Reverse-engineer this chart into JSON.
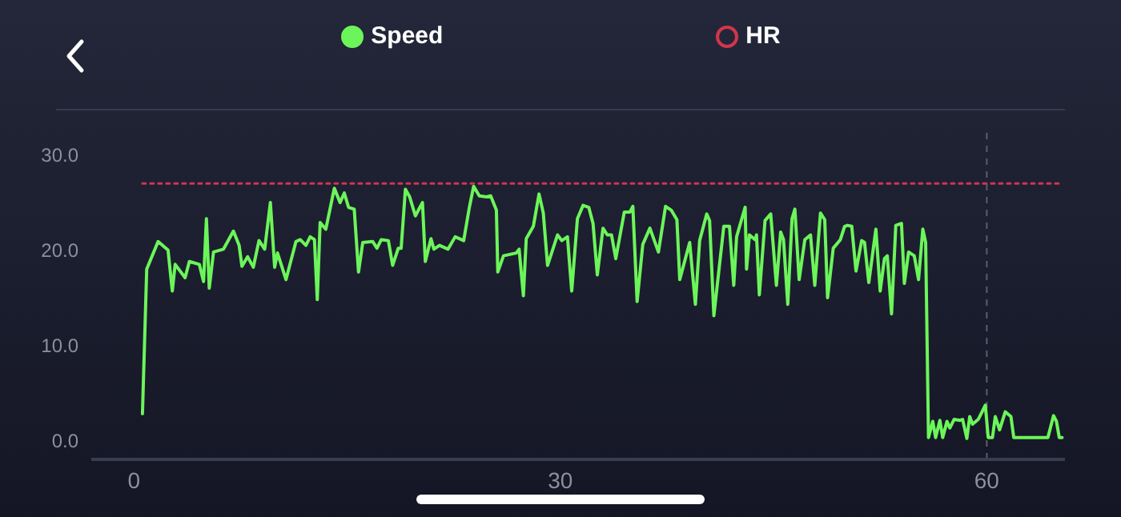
{
  "chart_data": {
    "type": "line",
    "legend": "top",
    "marker": "none",
    "xlim": [
      -3,
      65.5
    ],
    "xticks": [
      0,
      30,
      60
    ],
    "ylim": [
      -2,
      33
    ],
    "yticks": [
      {
        "value": 0,
        "label": "0.0"
      },
      {
        "value": 10,
        "label": "10.0"
      },
      {
        "value": 20,
        "label": "20.0"
      },
      {
        "value": 30,
        "label": "30.0"
      }
    ],
    "ref_lines": [
      {
        "axis": "x",
        "value": 60,
        "color": "#5a5d6e",
        "line_style": "dashed"
      }
    ],
    "series": [
      {
        "name": "Speed",
        "color": "#6cf55a",
        "line_style": "solid",
        "x": [
          0.6,
          0.9,
          1.7,
          2.4,
          2.7,
          2.9,
          3.6,
          3.9,
          4.6,
          4.9,
          5.1,
          5.3,
          5.6,
          6.3,
          7.0,
          7.4,
          7.6,
          8.0,
          8.4,
          8.8,
          9.2,
          9.6,
          9.9,
          10.1,
          10.7,
          11.4,
          11.7,
          12.1,
          12.4,
          12.7,
          12.9,
          13.1,
          13.5,
          14.1,
          14.5,
          14.8,
          15.1,
          15.5,
          15.8,
          16.1,
          16.8,
          17.1,
          17.4,
          17.9,
          18.2,
          18.6,
          18.8,
          19.1,
          19.4,
          19.8,
          20.3,
          20.5,
          20.9,
          21.1,
          21.5,
          22.1,
          22.6,
          23.2,
          23.6,
          23.9,
          24.3,
          24.8,
          25.1,
          25.5,
          25.6,
          26.0,
          26.9,
          27.1,
          27.4,
          27.6,
          28.1,
          28.5,
          28.8,
          29.1,
          29.8,
          30.1,
          30.5,
          30.8,
          31.2,
          31.6,
          32.0,
          32.3,
          32.6,
          33.0,
          33.3,
          33.6,
          33.9,
          34.5,
          34.9,
          35.1,
          35.4,
          35.8,
          36.3,
          36.9,
          37.4,
          37.8,
          38.2,
          38.4,
          39.1,
          39.5,
          39.8,
          40.3,
          40.5,
          40.8,
          41.5,
          41.9,
          42.2,
          42.4,
          43.0,
          43.1,
          43.3,
          43.7,
          43.8,
          44.0,
          44.4,
          44.8,
          45.2,
          45.5,
          45.7,
          46.0,
          46.3,
          46.5,
          46.8,
          47.2,
          47.6,
          47.9,
          48.3,
          48.6,
          48.8,
          49.2,
          49.7,
          50.0,
          50.2,
          50.5,
          50.8,
          51.2,
          51.4,
          51.7,
          52.2,
          52.5,
          52.8,
          53.0,
          53.3,
          53.6,
          54.0,
          54.2,
          54.5,
          54.9,
          55.2,
          55.5,
          55.7,
          55.9,
          56.2,
          56.4,
          56.7,
          56.9,
          57.2,
          57.4,
          57.7,
          58.1,
          58.3,
          58.6,
          58.8,
          59.0,
          59.4,
          59.9,
          60.1,
          60.4,
          60.6,
          60.9,
          61.3,
          61.7,
          61.9,
          64.3,
          64.7,
          64.9,
          65.1,
          65.3
        ],
        "values": [
          2.8,
          18.0,
          20.9,
          20.0,
          15.7,
          18.5,
          17.1,
          18.8,
          18.5,
          16.7,
          23.3,
          16.0,
          19.8,
          20.1,
          22.0,
          20.5,
          18.3,
          19.3,
          18.2,
          21.0,
          20.1,
          25.0,
          18.2,
          19.7,
          16.9,
          20.9,
          21.1,
          20.5,
          21.4,
          21.1,
          14.8,
          22.9,
          22.2,
          26.5,
          25.0,
          26.0,
          24.5,
          24.3,
          17.7,
          20.8,
          20.9,
          20.2,
          21.1,
          21.0,
          18.4,
          20.2,
          20.2,
          26.4,
          25.6,
          23.6,
          25.0,
          18.8,
          21.2,
          20.1,
          20.5,
          20.1,
          21.4,
          21.0,
          24.5,
          26.7,
          25.7,
          25.6,
          25.7,
          24.2,
          17.7,
          19.4,
          19.7,
          20.1,
          15.2,
          21.2,
          22.5,
          25.9,
          23.9,
          18.4,
          21.6,
          21.0,
          21.4,
          15.7,
          23.3,
          24.7,
          24.5,
          22.8,
          17.4,
          22.3,
          21.6,
          21.6,
          19.1,
          24.0,
          24.0,
          24.6,
          14.6,
          20.6,
          22.3,
          19.8,
          24.6,
          24.2,
          23.2,
          16.9,
          20.8,
          14.3,
          21.0,
          23.8,
          23.1,
          13.1,
          22.5,
          22.5,
          16.3,
          21.4,
          24.5,
          18.0,
          21.6,
          21.1,
          21.6,
          15.3,
          23.1,
          23.8,
          16.3,
          21.9,
          21.1,
          14.3,
          23.3,
          24.3,
          16.9,
          21.1,
          21.6,
          16.3,
          23.9,
          23.2,
          15.0,
          20.2,
          21.1,
          22.5,
          22.6,
          22.5,
          17.8,
          21.0,
          20.8,
          16.6,
          22.2,
          15.7,
          19.1,
          19.4,
          13.3,
          22.6,
          22.8,
          16.5,
          19.8,
          19.4,
          16.9,
          22.2,
          20.8,
          0.3,
          2.0,
          0.3,
          2.1,
          0.3,
          2.0,
          1.3,
          2.2,
          2.1,
          2.2,
          0.2,
          2.5,
          1.7,
          2.2,
          3.7,
          0.3,
          0.3,
          2.5,
          1.1,
          3.0,
          2.5,
          0.3,
          0.3,
          2.6,
          2.0,
          0.3,
          0.3
        ]
      },
      {
        "name": "HR",
        "color": "#d0364e",
        "line_style": "dotted",
        "x": [
          0.6,
          65.3
        ],
        "values": [
          27,
          27
        ]
      }
    ]
  }
}
